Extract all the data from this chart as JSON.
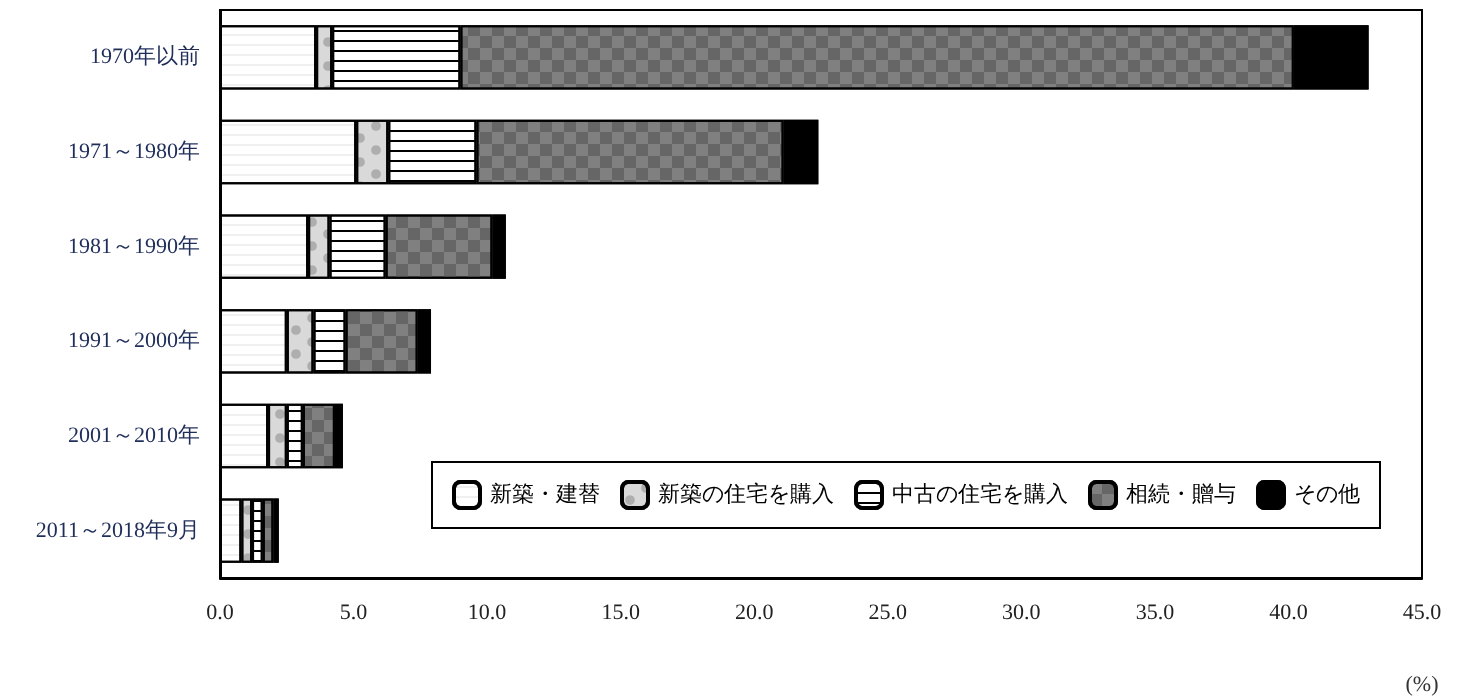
{
  "chart_data": {
    "type": "bar",
    "orientation": "horizontal",
    "stacked": true,
    "xlabel": "(%)",
    "categories": [
      "1970年以前",
      "1971～1980年",
      "1981～1990年",
      "1991～2000年",
      "2001～2010年",
      "2011～2018年9月"
    ],
    "series": [
      {
        "name": "新築・建替",
        "color": "#ffffff",
        "values": [
          3.6,
          5.1,
          3.3,
          2.5,
          1.8,
          0.8
        ]
      },
      {
        "name": "新築の住宅を購入",
        "color": "#d9d9d9",
        "values": [
          0.6,
          1.2,
          0.8,
          1.0,
          0.7,
          0.4
        ]
      },
      {
        "name": "中古の住宅を購入",
        "color": "#ffffff",
        "values": [
          4.8,
          3.3,
          2.1,
          1.2,
          0.6,
          0.4
        ]
      },
      {
        "name": "相続・贈与",
        "color": "#808080",
        "values": [
          31.2,
          11.5,
          4.0,
          2.7,
          1.2,
          0.4
        ]
      },
      {
        "name": "その他",
        "color": "#000000",
        "values": [
          2.8,
          1.3,
          0.5,
          0.5,
          0.3,
          0.2
        ]
      }
    ],
    "xlim": [
      0,
      45
    ],
    "xticks": [
      {
        "value": 0,
        "label": "0.0"
      },
      {
        "value": 5,
        "label": "5.0"
      },
      {
        "value": 10,
        "label": "10.0"
      },
      {
        "value": 15,
        "label": "15.0"
      },
      {
        "value": 20,
        "label": "20.0"
      },
      {
        "value": 25,
        "label": "25.0"
      },
      {
        "value": 30,
        "label": "30.0"
      },
      {
        "value": 35,
        "label": "35.0"
      },
      {
        "value": 40,
        "label": "40.0"
      },
      {
        "value": 45,
        "label": "45.0"
      }
    ],
    "grid": false,
    "legend": "bottom right"
  }
}
